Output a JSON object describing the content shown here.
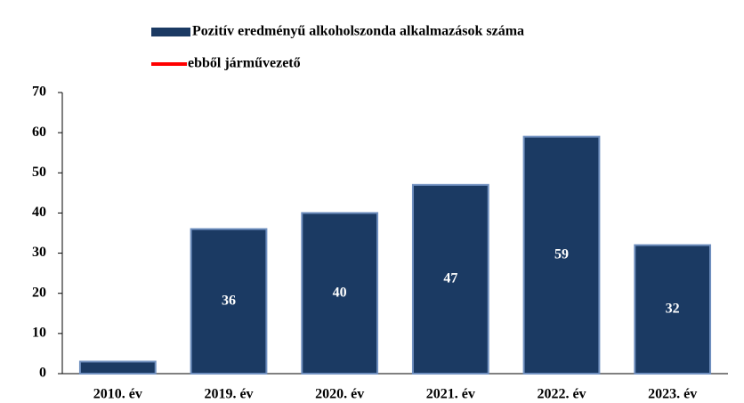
{
  "chart_data": {
    "type": "bar",
    "categories": [
      "2010. év",
      "2019. év",
      "2020. év",
      "2021. év",
      "2022. év",
      "2023. év"
    ],
    "series": [
      {
        "name": "Pozitív eredményű alkoholszonda alkalmazások száma",
        "color": "#1b3a63",
        "values": [
          3,
          36,
          40,
          47,
          59,
          32
        ],
        "value_labels": [
          null,
          "36",
          "40",
          "47",
          "59",
          "32"
        ]
      },
      {
        "name": "ebből járművezető",
        "color": "#ff0000",
        "values": [
          null,
          null,
          null,
          null,
          null,
          null
        ]
      }
    ],
    "ylim": [
      0,
      70
    ],
    "yticks": [
      0,
      10,
      20,
      30,
      40,
      50,
      60,
      70
    ],
    "grid": false
  }
}
